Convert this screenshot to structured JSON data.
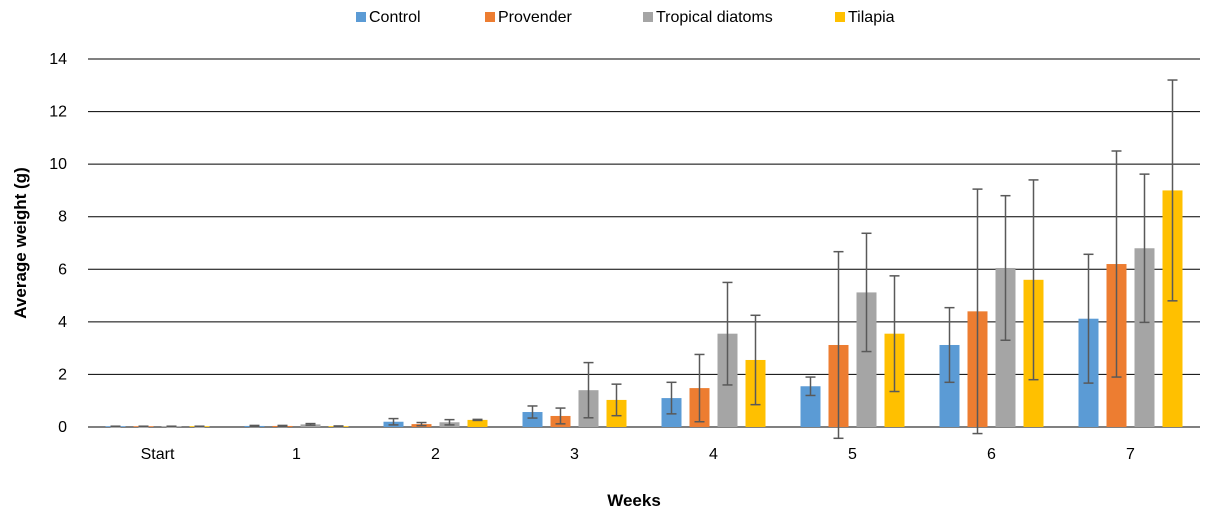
{
  "chart_data": {
    "type": "bar",
    "xlabel": "Weeks",
    "ylabel": "Average weight (g)",
    "ylim": [
      0,
      14
    ],
    "yticks": [
      0,
      2,
      4,
      6,
      8,
      10,
      12,
      14
    ],
    "grid": true,
    "legend_position": "top",
    "categories": [
      "Start",
      "1",
      "2",
      "3",
      "4",
      "5",
      "6",
      "7"
    ],
    "series": [
      {
        "name": "Control",
        "color": "#5B9BD5",
        "values": [
          0.02,
          0.04,
          0.2,
          0.57,
          1.1,
          1.55,
          3.12,
          4.12
        ],
        "errors": [
          0.01,
          0.02,
          0.12,
          0.23,
          0.6,
          0.35,
          1.42,
          2.45
        ]
      },
      {
        "name": "Provender",
        "color": "#ED7D31",
        "values": [
          0.02,
          0.04,
          0.11,
          0.42,
          1.48,
          3.12,
          4.4,
          6.2
        ],
        "errors": [
          0.01,
          0.02,
          0.06,
          0.3,
          1.28,
          3.55,
          4.65,
          4.3
        ]
      },
      {
        "name": "Tropical diatoms",
        "color": "#A5A5A5",
        "values": [
          0.02,
          0.1,
          0.18,
          1.4,
          3.55,
          5.12,
          6.05,
          6.8
        ],
        "errors": [
          0.01,
          0.03,
          0.1,
          1.05,
          1.95,
          2.25,
          2.75,
          2.82
        ]
      },
      {
        "name": "Tilapia",
        "color": "#FFC000",
        "values": [
          0.02,
          0.03,
          0.27,
          1.03,
          2.55,
          3.55,
          5.6,
          9.0
        ],
        "errors": [
          0.01,
          0.01,
          0.02,
          0.6,
          1.7,
          2.2,
          3.8,
          4.2
        ]
      }
    ]
  }
}
